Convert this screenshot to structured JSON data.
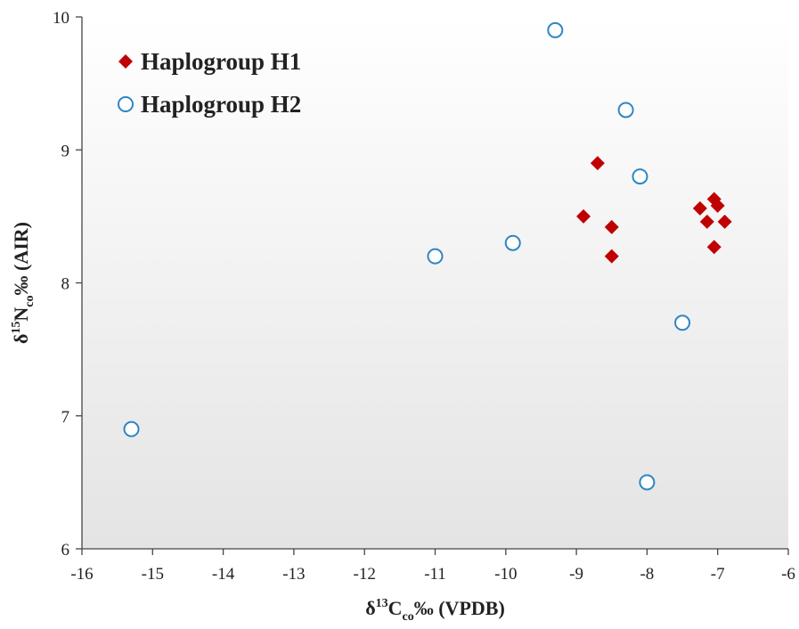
{
  "chart_data": {
    "type": "scatter",
    "title": "",
    "xlim": [
      -16,
      -6
    ],
    "ylim": [
      6,
      10
    ],
    "xticks": [
      -16,
      -15,
      -14,
      -13,
      -12,
      -11,
      -10,
      -9,
      -8,
      -7,
      -6
    ],
    "yticks": [
      6,
      7,
      8,
      9,
      10
    ],
    "xlabel": {
      "prefix": "δ",
      "sup": "13",
      "main": "C",
      "sub": "co",
      "suffix": "‰ (VPDB)"
    },
    "ylabel": {
      "prefix": "δ",
      "sup": "15",
      "main": "N",
      "sub": "co",
      "suffix": "‰ (AIR)"
    },
    "grid": false,
    "legend_position": "top-left",
    "series": [
      {
        "name": "Haplogroup H1",
        "marker": "diamond",
        "color": "#c00000",
        "x": [
          -8.9,
          -8.7,
          -8.5,
          -8.5,
          -7.25,
          -7.15,
          -7.05,
          -7.0,
          -6.9,
          -7.05
        ],
        "y": [
          8.5,
          8.9,
          8.42,
          8.2,
          8.56,
          8.46,
          8.63,
          8.58,
          8.46,
          8.27
        ]
      },
      {
        "name": "Haplogroup H2",
        "marker": "open-circle",
        "color": "#2e86c1",
        "x": [
          -15.3,
          -11.0,
          -9.9,
          -9.3,
          -8.3,
          -8.1,
          -7.5,
          -8.0
        ],
        "y": [
          6.9,
          8.2,
          8.3,
          9.9,
          9.3,
          8.8,
          7.7,
          6.5
        ]
      }
    ]
  }
}
